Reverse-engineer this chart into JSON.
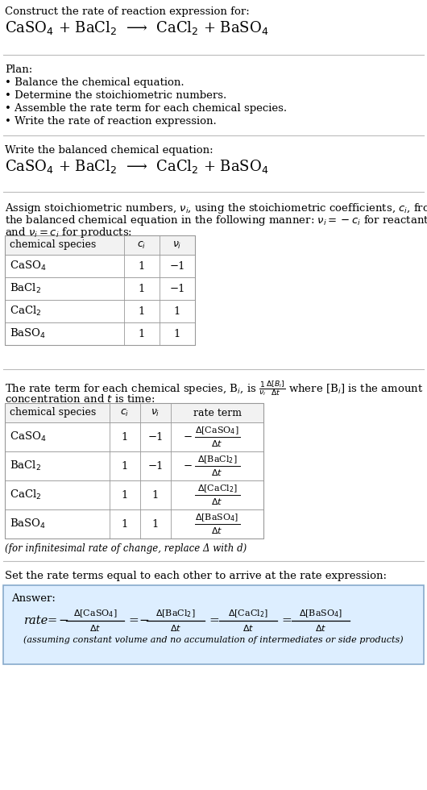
{
  "bg_color": "#ffffff",
  "text_color": "#000000",
  "table_border_color": "#999999",
  "answer_box_color": "#ddeeff",
  "answer_border_color": "#88aacc",
  "font_size": 9.5,
  "sections": {
    "title": "Construct the rate of reaction expression for:",
    "reaction": "CaSO$_4$ + BaCl$_2$  ⟶  CaCl$_2$ + BaSO$_4$",
    "plan_header": "Plan:",
    "plan_items": [
      "• Balance the chemical equation.",
      "• Determine the stoichiometric numbers.",
      "• Assemble the rate term for each chemical species.",
      "• Write the rate of reaction expression."
    ],
    "balanced_header": "Write the balanced chemical equation:",
    "balanced_eq": "CaSO$_4$ + BaCl$_2$  ⟶  CaCl$_2$ + BaSO$_4$",
    "stoich_line1": "Assign stoichiometric numbers, $\\nu_i$, using the stoichiometric coefficients, $c_i$, from",
    "stoich_line2": "the balanced chemical equation in the following manner: $\\nu_i = -c_i$ for reactants",
    "stoich_line3": "and $\\nu_i = c_i$ for products:",
    "rate_line1": "The rate term for each chemical species, B$_i$, is $\\frac{1}{\\nu_i}\\frac{\\Delta[B_i]}{\\Delta t}$ where [B$_i$] is the amount",
    "rate_line2": "concentration and $t$ is time:",
    "infinitesimal": "(for infinitesimal rate of change, replace Δ with d)",
    "set_equal": "Set the rate terms equal to each other to arrive at the rate expression:",
    "answer_label": "Answer:",
    "answer_note": "(assuming constant volume and no accumulation of intermediates or side products)"
  }
}
